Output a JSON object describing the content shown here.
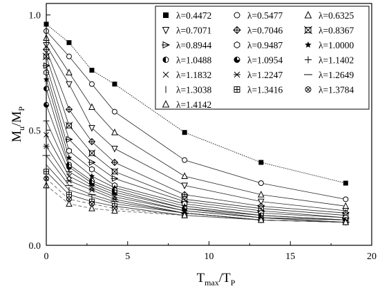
{
  "chart_data": {
    "type": "line",
    "xlabel": {
      "main": "T",
      "sub1": "max",
      "sep": "/T",
      "sub2": "P"
    },
    "ylabel": {
      "main": "M",
      "sub1": "u",
      "sep": "/M",
      "sub2": "P"
    },
    "xlim": [
      0,
      20
    ],
    "ylim": [
      0,
      1.05
    ],
    "x_ticks": [
      "0",
      "5",
      "10",
      "15",
      "20"
    ],
    "y_ticks": [
      "0.0",
      "0.5",
      "1.0"
    ],
    "x_tick_values": [
      0,
      5,
      10,
      15,
      20
    ],
    "y_tick_values": [
      0,
      0.5,
      1.0
    ],
    "grid": false,
    "legend_position": "top-right",
    "x": [
      0,
      1.4,
      2.8,
      4.2,
      8.5,
      13.2,
      18.4
    ],
    "series": [
      {
        "name": "λ=0.4472",
        "marker": "square-filled",
        "values": [
          0.96,
          0.88,
          0.76,
          0.7,
          0.49,
          0.36,
          0.27
        ]
      },
      {
        "name": "λ=0.5477",
        "marker": "circle-open",
        "values": [
          0.93,
          0.82,
          0.7,
          0.58,
          0.37,
          0.27,
          0.2
        ]
      },
      {
        "name": "λ=0.6325",
        "marker": "triangle-up",
        "values": [
          0.9,
          0.75,
          0.6,
          0.49,
          0.3,
          0.22,
          0.17
        ]
      },
      {
        "name": "λ=0.7071",
        "marker": "triangle-down",
        "values": [
          0.87,
          0.7,
          0.51,
          0.42,
          0.26,
          0.19,
          0.15
        ]
      },
      {
        "name": "λ=0.7046",
        "marker": "diamond-plus",
        "values": [
          0.85,
          0.59,
          0.45,
          0.36,
          0.22,
          0.17,
          0.14
        ]
      },
      {
        "name": "λ=0.8367",
        "marker": "square-x",
        "values": [
          0.82,
          0.52,
          0.4,
          0.32,
          0.2,
          0.16,
          0.13
        ]
      },
      {
        "name": "λ=0.8944",
        "marker": "triangle-right",
        "values": [
          0.78,
          0.46,
          0.36,
          0.29,
          0.19,
          0.15,
          0.12
        ]
      },
      {
        "name": "λ=0.9487",
        "marker": "hexagon-open",
        "values": [
          0.75,
          0.41,
          0.33,
          0.26,
          0.18,
          0.14,
          0.12
        ]
      },
      {
        "name": "λ=1.0000",
        "marker": "star",
        "values": [
          0.72,
          0.38,
          0.3,
          0.25,
          0.17,
          0.13,
          0.11
        ]
      },
      {
        "name": "λ=1.0488",
        "marker": "circle-half-left",
        "values": [
          0.68,
          0.35,
          0.28,
          0.24,
          0.16,
          0.13,
          0.11
        ]
      },
      {
        "name": "λ=1.0954",
        "marker": "circle-half-bottom",
        "values": [
          0.61,
          0.34,
          0.27,
          0.23,
          0.16,
          0.12,
          0.11
        ]
      },
      {
        "name": "λ=1.1402",
        "marker": "plus",
        "values": [
          0.54,
          0.32,
          0.26,
          0.22,
          0.15,
          0.12,
          0.1
        ]
      },
      {
        "name": "λ=1.1832",
        "marker": "x",
        "values": [
          0.48,
          0.3,
          0.25,
          0.21,
          0.15,
          0.12,
          0.1
        ]
      },
      {
        "name": "λ=1.2247",
        "marker": "asterisk",
        "values": [
          0.43,
          0.28,
          0.24,
          0.2,
          0.14,
          0.11,
          0.1
        ]
      },
      {
        "name": "λ=1.2649",
        "marker": "dash",
        "values": [
          0.39,
          0.26,
          0.22,
          0.19,
          0.14,
          0.11,
          0.1
        ]
      },
      {
        "name": "λ=1.3038",
        "marker": "vbar",
        "values": [
          0.35,
          0.24,
          0.21,
          0.18,
          0.14,
          0.11,
          0.1
        ]
      },
      {
        "name": "λ=1.3416",
        "marker": "square-plus",
        "values": [
          0.32,
          0.22,
          0.19,
          0.17,
          0.13,
          0.11,
          0.1
        ]
      },
      {
        "name": "λ=1.3784",
        "marker": "circle-x",
        "values": [
          0.29,
          0.2,
          0.18,
          0.16,
          0.13,
          0.11,
          0.1
        ]
      },
      {
        "name": "λ=1.4142",
        "marker": "triangle-up",
        "values": [
          0.26,
          0.18,
          0.16,
          0.15,
          0.13,
          0.11,
          0.1
        ]
      }
    ]
  }
}
